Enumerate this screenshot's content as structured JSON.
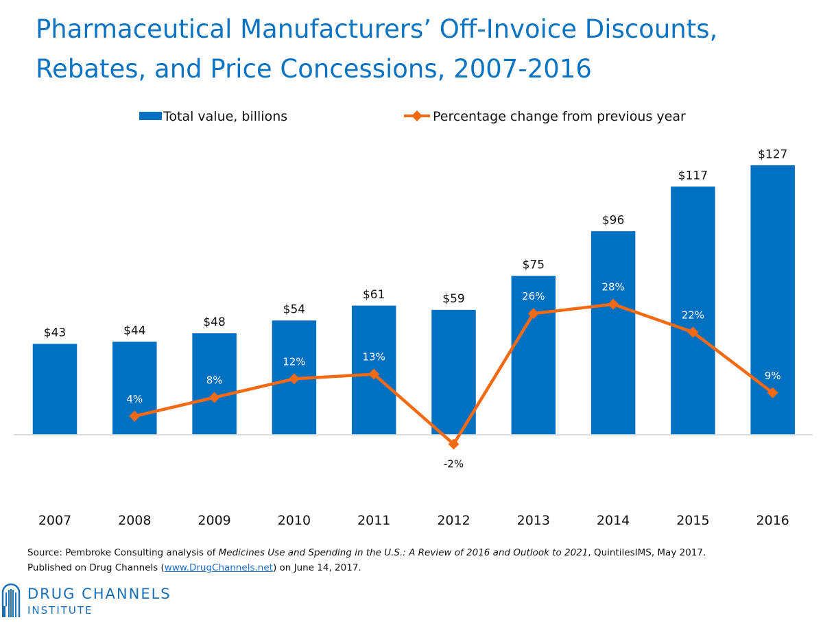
{
  "title_lines": [
    "Pharmaceutical Manufacturers’ Off-Invoice Discounts,",
    "Rebates, and Price Concessions, 2007-2016"
  ],
  "chart_data": {
    "type": "bar",
    "title": "Pharmaceutical Manufacturers’ Off-Invoice Discounts, Rebates, and Price Concessions, 2007-2016",
    "categories": [
      "2007",
      "2008",
      "2009",
      "2010",
      "2011",
      "2012",
      "2013",
      "2014",
      "2015",
      "2016"
    ],
    "series": [
      {
        "name": "Total value, billions",
        "type": "bar",
        "color": "#0070c0",
        "values": [
          43,
          44,
          48,
          54,
          61,
          59,
          75,
          96,
          117,
          127
        ],
        "labels": [
          "$43",
          "$44",
          "$48",
          "$54",
          "$61",
          "$59",
          "$75",
          "$96",
          "$117",
          "$127"
        ]
      },
      {
        "name": "Percentage change from previous year",
        "type": "line",
        "color": "#f46a12",
        "marker": "diamond",
        "values": [
          null,
          4,
          8,
          12,
          13,
          -2,
          26,
          28,
          22,
          9
        ],
        "labels": [
          "",
          "4%",
          "8%",
          "12%",
          "13%",
          "-2%",
          "26%",
          "28%",
          "22%",
          "9%"
        ]
      }
    ],
    "legend_position": "top",
    "grid": false
  },
  "source": {
    "prefix": "Source: Pembroke Consulting analysis of ",
    "italic_title": "Medicines Use and Spending in the U.S.: A Review of 2016 and Outlook to 2021",
    "suffix": ", QuintilesIMS, May 2017.",
    "line2_prefix": "Published on Drug Channels (",
    "link_text": "www.DrugChannels.net",
    "line2_suffix": ") on June 14, 2017."
  },
  "logo": {
    "line1": "DRUG CHANNELS",
    "line2": "INSTITUTE",
    "color": "#1a6fb5"
  }
}
